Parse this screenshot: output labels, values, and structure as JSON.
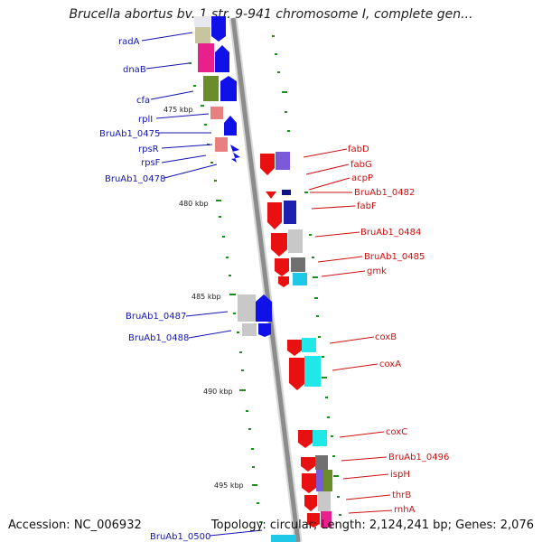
{
  "header": {
    "title": "Brucella abortus bv. 1 str. 9-941 chromosome I, complete gen..."
  },
  "footer": {
    "accession": "Accession: NC_006932",
    "summary": "Topology: circular; Length: 2,124,241 bp; Genes: 2,076"
  },
  "ticks": [
    {
      "label": "475 kbp"
    },
    {
      "label": "480 kbp"
    },
    {
      "label": "485 kbp"
    },
    {
      "label": "490 kbp"
    },
    {
      "label": "495 kbp"
    }
  ],
  "genes_left": [
    {
      "label": "radA"
    },
    {
      "label": "dnaB"
    },
    {
      "label": "cfa"
    },
    {
      "label": "rplI"
    },
    {
      "label": "BruAb1_0475"
    },
    {
      "label": "rpsR"
    },
    {
      "label": "rpsF"
    },
    {
      "label": "BruAb1_0478"
    },
    {
      "label": "BruAb1_0487"
    },
    {
      "label": "BruAb1_0488"
    },
    {
      "label": "BruAb1_0500"
    }
  ],
  "genes_right": [
    {
      "label": "fabD"
    },
    {
      "label": "fabG"
    },
    {
      "label": "acpP"
    },
    {
      "label": "BruAb1_0482"
    },
    {
      "label": "fabF"
    },
    {
      "label": "BruAb1_0484"
    },
    {
      "label": "BruAb1_0485"
    },
    {
      "label": "gmk"
    },
    {
      "label": "coxB"
    },
    {
      "label": "coxA"
    },
    {
      "label": "coxC"
    },
    {
      "label": "BruAb1_0496"
    },
    {
      "label": "ispH"
    },
    {
      "label": "thrB"
    },
    {
      "label": "rnhA"
    }
  ],
  "colors": {
    "forward_strand": "#1010e8",
    "reverse_strand": "#e81010",
    "backbone": "#8c8c8c",
    "tick_mark": "#1e8c1e",
    "label_left": "#1515b0",
    "label_right": "#cc1010"
  }
}
